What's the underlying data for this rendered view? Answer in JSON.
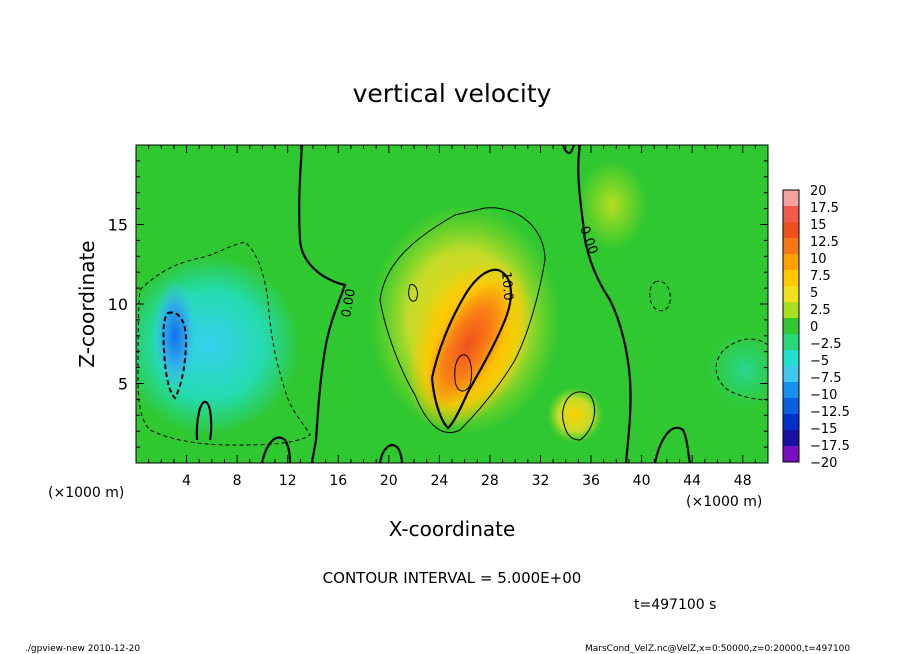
{
  "chart_data": {
    "type": "heatmap",
    "title": "vertical velocity",
    "xlabel": "X-coordinate",
    "ylabel": "Z-coordinate",
    "xunit_left": "(×1000 m)",
    "xunit_right": "(×1000 m)",
    "xlim": [
      0,
      50
    ],
    "ylim": [
      0,
      20
    ],
    "xticks": [
      4,
      8,
      12,
      16,
      20,
      24,
      28,
      32,
      36,
      40,
      44,
      48
    ],
    "yticks": [
      5,
      10,
      15
    ],
    "contour_interval": "CONTOUR INTERVAL = 5.000E+00",
    "contour_labels": [
      "0.00",
      "10.0",
      "0.00"
    ],
    "colorbar": {
      "labels": [
        "20",
        "17.5",
        "15",
        "12.5",
        "10",
        "7.5",
        "5",
        "2.5",
        "0",
        "−2.5",
        "−5",
        "−7.5",
        "−10",
        "−12.5",
        "−15",
        "−17.5",
        "−20"
      ],
      "colors": [
        "#f7a0a0",
        "#f45a4a",
        "#f0501e",
        "#f87818",
        "#ffa000",
        "#ffc800",
        "#f0e020",
        "#a8e020",
        "#30c830",
        "#28d878",
        "#20e0d0",
        "#40c8f0",
        "#1890f0",
        "#0860e0",
        "#0030c8",
        "#1810a0",
        "#7810c0"
      ]
    }
  },
  "footer": {
    "time": "t=497100 s",
    "left": "./gpview-new  2010-12-20",
    "right": "MarsCond_VelZ.nc@VelZ,x=0:50000,z=0:20000,t=497100"
  }
}
